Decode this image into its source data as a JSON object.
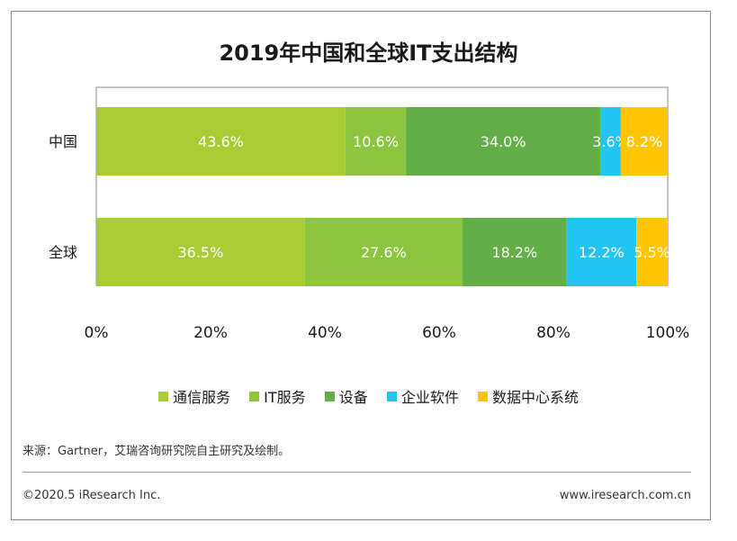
{
  "title": "2019年中国和全球IT支出结构",
  "legend": [
    {
      "label": "通信服务",
      "color": "#a8cc33"
    },
    {
      "label": "IT服务",
      "color": "#8cc63f"
    },
    {
      "label": "设备",
      "color": "#63ae46"
    },
    {
      "label": "企业软件",
      "color": "#22c5f2"
    },
    {
      "label": "数据中心系统",
      "color": "#ffc600"
    }
  ],
  "source": "来源：Gartner，艾瑞咨询研究院自主研究及绘制。",
  "footer": {
    "copyright": "©2020.5 iResearch Inc.",
    "website": "www.iresearch.com.cn"
  },
  "chart_data": {
    "type": "bar",
    "orientation": "horizontal",
    "stacked": true,
    "title": "2019年中国和全球IT支出结构",
    "categories": [
      "中国",
      "全球"
    ],
    "series": [
      {
        "name": "通信服务",
        "values": [
          43.6,
          36.5
        ],
        "labels": [
          "43.6%",
          "36.5%"
        ],
        "color": "#a8cc33"
      },
      {
        "name": "IT服务",
        "values": [
          10.6,
          27.6
        ],
        "labels": [
          "10.6%",
          "27.6%"
        ],
        "color": "#8cc63f"
      },
      {
        "name": "设备",
        "values": [
          34.0,
          18.2
        ],
        "labels": [
          "34.0%",
          "18.2%"
        ],
        "color": "#63ae46"
      },
      {
        "name": "企业软件",
        "values": [
          3.6,
          12.2
        ],
        "labels": [
          "3.6%",
          "12.2%"
        ],
        "color": "#22c5f2"
      },
      {
        "name": "数据中心系统",
        "values": [
          8.2,
          5.5
        ],
        "labels": [
          "8.2%",
          "5.5%"
        ],
        "color": "#ffc600"
      }
    ],
    "xlim": [
      0,
      100
    ],
    "xticks": [
      "0%",
      "20%",
      "40%",
      "60%",
      "80%",
      "100%"
    ],
    "grid": false,
    "legend_position": "bottom"
  }
}
